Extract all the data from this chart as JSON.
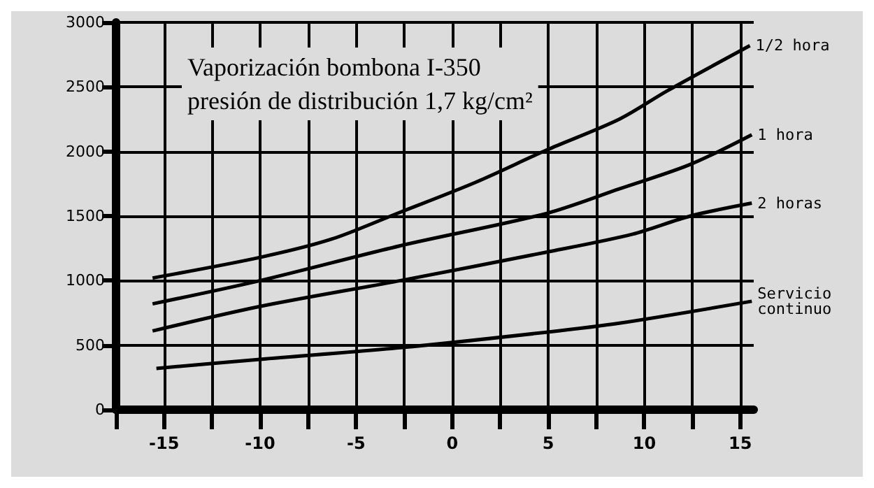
{
  "chart_data": {
    "type": "line",
    "title": "Vaporización bombona I-350\npresión de distribución 1,7 kg/cm²",
    "xlim": [
      -17.5,
      15.7
    ],
    "ylim": [
      0,
      3000
    ],
    "xticks": [
      {
        "value": -17.5,
        "label": null
      },
      -15,
      {
        "value": -12.5,
        "label": null
      },
      -10,
      {
        "value": -7.5,
        "label": null
      },
      -5,
      {
        "value": -2.5,
        "label": null
      },
      0,
      {
        "value": 2.5,
        "label": null
      },
      5,
      {
        "value": 7.5,
        "label": null
      },
      10,
      {
        "value": 12.5,
        "label": null
      },
      15
    ],
    "yticks": [
      0,
      500,
      1000,
      1500,
      2000,
      2500,
      3000
    ],
    "grid": true,
    "legend": false,
    "marker": "none",
    "line_style": "solid",
    "series": [
      {
        "name": "1/2 hora",
        "color": "#000000",
        "x": [
          -15.6,
          -10,
          -6.3,
          -2.7,
          1.2,
          4.9,
          8.7,
          11.2,
          15.5
        ],
        "values": [
          1020,
          1180,
          1320,
          1530,
          1760,
          2010,
          2250,
          2470,
          2820
        ]
      },
      {
        "name": "1 hora",
        "color": "#000000",
        "x": [
          -15.6,
          -10,
          -2.7,
          4.9,
          8.7,
          12.4,
          15.6
        ],
        "values": [
          820,
          1000,
          1270,
          1520,
          1710,
          1900,
          2130
        ]
      },
      {
        "name": "2 horas",
        "color": "#000000",
        "x": [
          -15.6,
          -10,
          -2.7,
          4.9,
          9.4,
          12.4,
          15.6
        ],
        "values": [
          610,
          800,
          1000,
          1220,
          1360,
          1500,
          1600
        ]
      },
      {
        "name": "Servicio continuo",
        "color": "#000000",
        "x": [
          -15.4,
          -10,
          -2.7,
          4.9,
          8.7,
          15.6
        ],
        "values": [
          320,
          390,
          480,
          600,
          670,
          840
        ]
      }
    ]
  }
}
